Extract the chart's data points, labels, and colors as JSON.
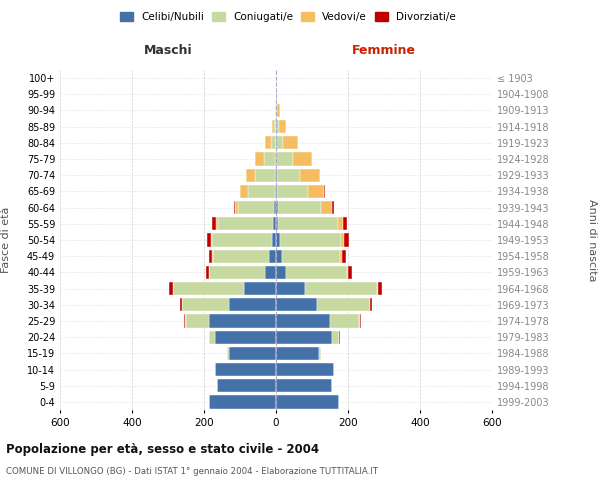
{
  "age_groups": [
    "0-4",
    "5-9",
    "10-14",
    "15-19",
    "20-24",
    "25-29",
    "30-34",
    "35-39",
    "40-44",
    "45-49",
    "50-54",
    "55-59",
    "60-64",
    "65-69",
    "70-74",
    "75-79",
    "80-84",
    "85-89",
    "90-94",
    "95-99",
    "100+"
  ],
  "birth_years": [
    "1999-2003",
    "1994-1998",
    "1989-1993",
    "1984-1988",
    "1979-1983",
    "1974-1978",
    "1969-1973",
    "1964-1968",
    "1959-1963",
    "1954-1958",
    "1949-1953",
    "1944-1948",
    "1939-1943",
    "1934-1938",
    "1929-1933",
    "1924-1928",
    "1919-1923",
    "1914-1918",
    "1909-1913",
    "1904-1908",
    "≤ 1903"
  ],
  "male_celibi": [
    185,
    165,
    170,
    130,
    170,
    185,
    130,
    90,
    30,
    20,
    12,
    7,
    5,
    4,
    3,
    2,
    0,
    0,
    0,
    0,
    0
  ],
  "male_coniugati": [
    0,
    0,
    0,
    5,
    15,
    65,
    130,
    195,
    155,
    155,
    165,
    155,
    100,
    75,
    55,
    30,
    15,
    5,
    2,
    1,
    0
  ],
  "male_vedovi": [
    0,
    0,
    0,
    0,
    0,
    2,
    2,
    2,
    2,
    2,
    3,
    5,
    10,
    20,
    25,
    25,
    15,
    5,
    2,
    0,
    0
  ],
  "male_divorziati": [
    0,
    0,
    0,
    0,
    0,
    3,
    5,
    10,
    8,
    10,
    12,
    10,
    2,
    0,
    0,
    0,
    0,
    0,
    0,
    0,
    0
  ],
  "female_celibi": [
    175,
    155,
    160,
    120,
    155,
    150,
    115,
    80,
    28,
    18,
    10,
    6,
    5,
    3,
    2,
    1,
    0,
    0,
    0,
    0,
    0
  ],
  "female_coniugati": [
    0,
    0,
    0,
    6,
    20,
    80,
    145,
    200,
    170,
    160,
    170,
    165,
    120,
    85,
    65,
    45,
    20,
    8,
    2,
    1,
    0
  ],
  "female_vedovi": [
    0,
    0,
    0,
    0,
    1,
    2,
    2,
    3,
    3,
    5,
    8,
    15,
    30,
    45,
    55,
    55,
    40,
    20,
    8,
    2,
    1
  ],
  "female_divorziati": [
    0,
    0,
    0,
    0,
    1,
    3,
    6,
    12,
    10,
    12,
    15,
    12,
    5,
    2,
    0,
    0,
    0,
    0,
    0,
    0,
    0
  ],
  "color_celibi": "#4472a8",
  "color_coniugati": "#c5d9a0",
  "color_vedovi": "#f5bc60",
  "color_divorziati": "#c00000",
  "title": "Popolazione per età, sesso e stato civile - 2004",
  "subtitle": "COMUNE DI VILLONGO (BG) - Dati ISTAT 1° gennaio 2004 - Elaborazione TUTTITALIA.IT",
  "xlabel_left": "Maschi",
  "xlabel_right": "Femmine",
  "ylabel_left": "Fasce di età",
  "ylabel_right": "Anni di nascita",
  "xlim": 600,
  "background_color": "#ffffff",
  "grid_color": "#cccccc"
}
